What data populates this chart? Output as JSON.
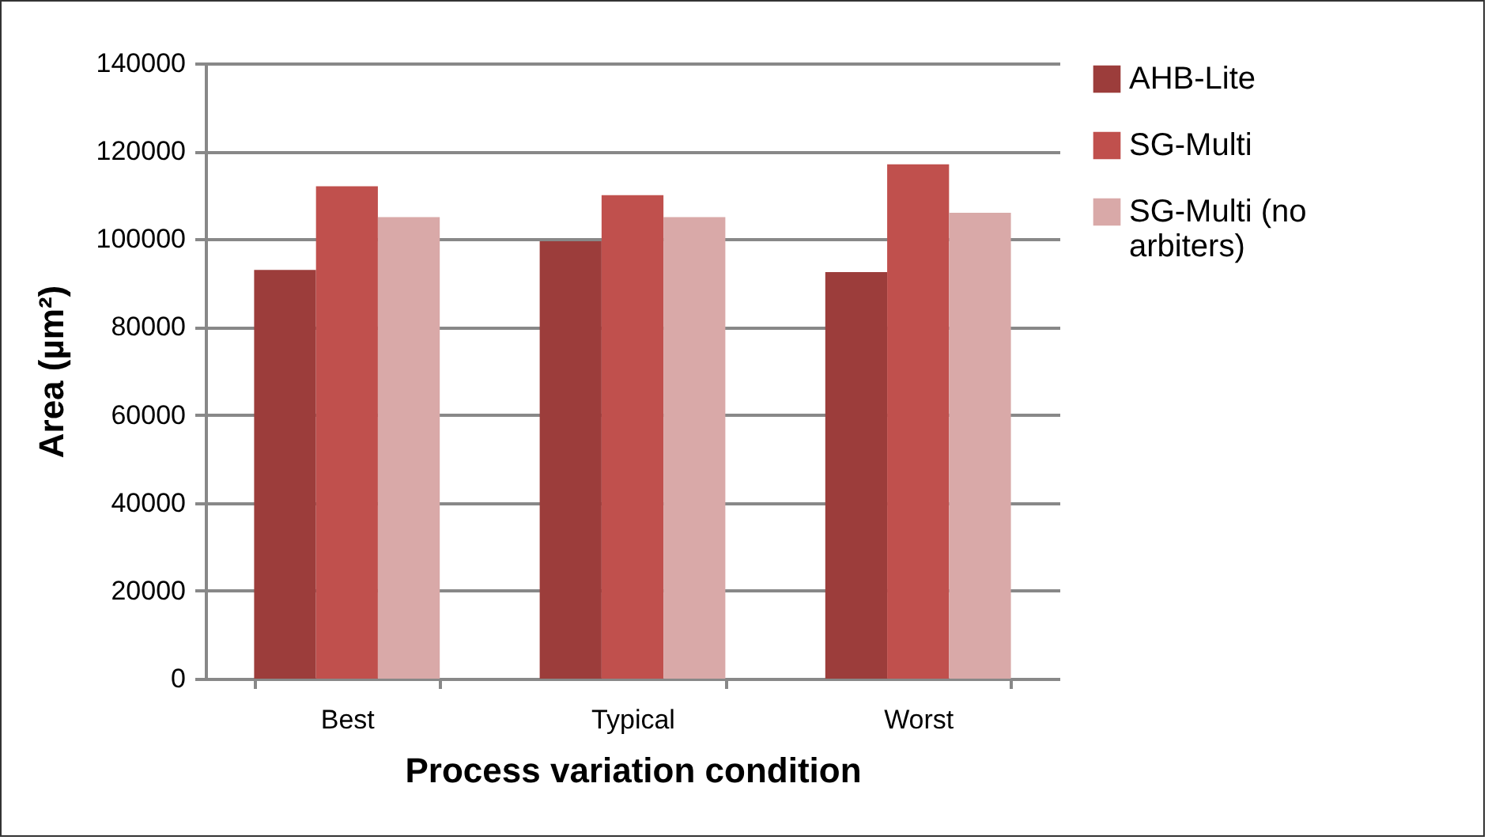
{
  "chart_data": {
    "type": "bar",
    "xlabel": "Process variation condition",
    "ylabel": "Area (µm²)",
    "categories": [
      "Best",
      "Typical",
      "Worst"
    ],
    "series": [
      {
        "name": "AHB-Lite",
        "color": "#9c3d3b",
        "values": [
          93000,
          99500,
          92500
        ]
      },
      {
        "name": "SG-Multi",
        "color": "#c0504d",
        "values": [
          112000,
          110000,
          117000
        ]
      },
      {
        "name": "SG-Multi (no arbiters)",
        "color": "#d9a9a8",
        "values": [
          105000,
          105000,
          106000
        ]
      }
    ],
    "ylim": [
      0,
      140000
    ],
    "yticks": [
      0,
      20000,
      40000,
      60000,
      80000,
      100000,
      120000,
      140000
    ],
    "grid": "y",
    "legend": "right"
  }
}
